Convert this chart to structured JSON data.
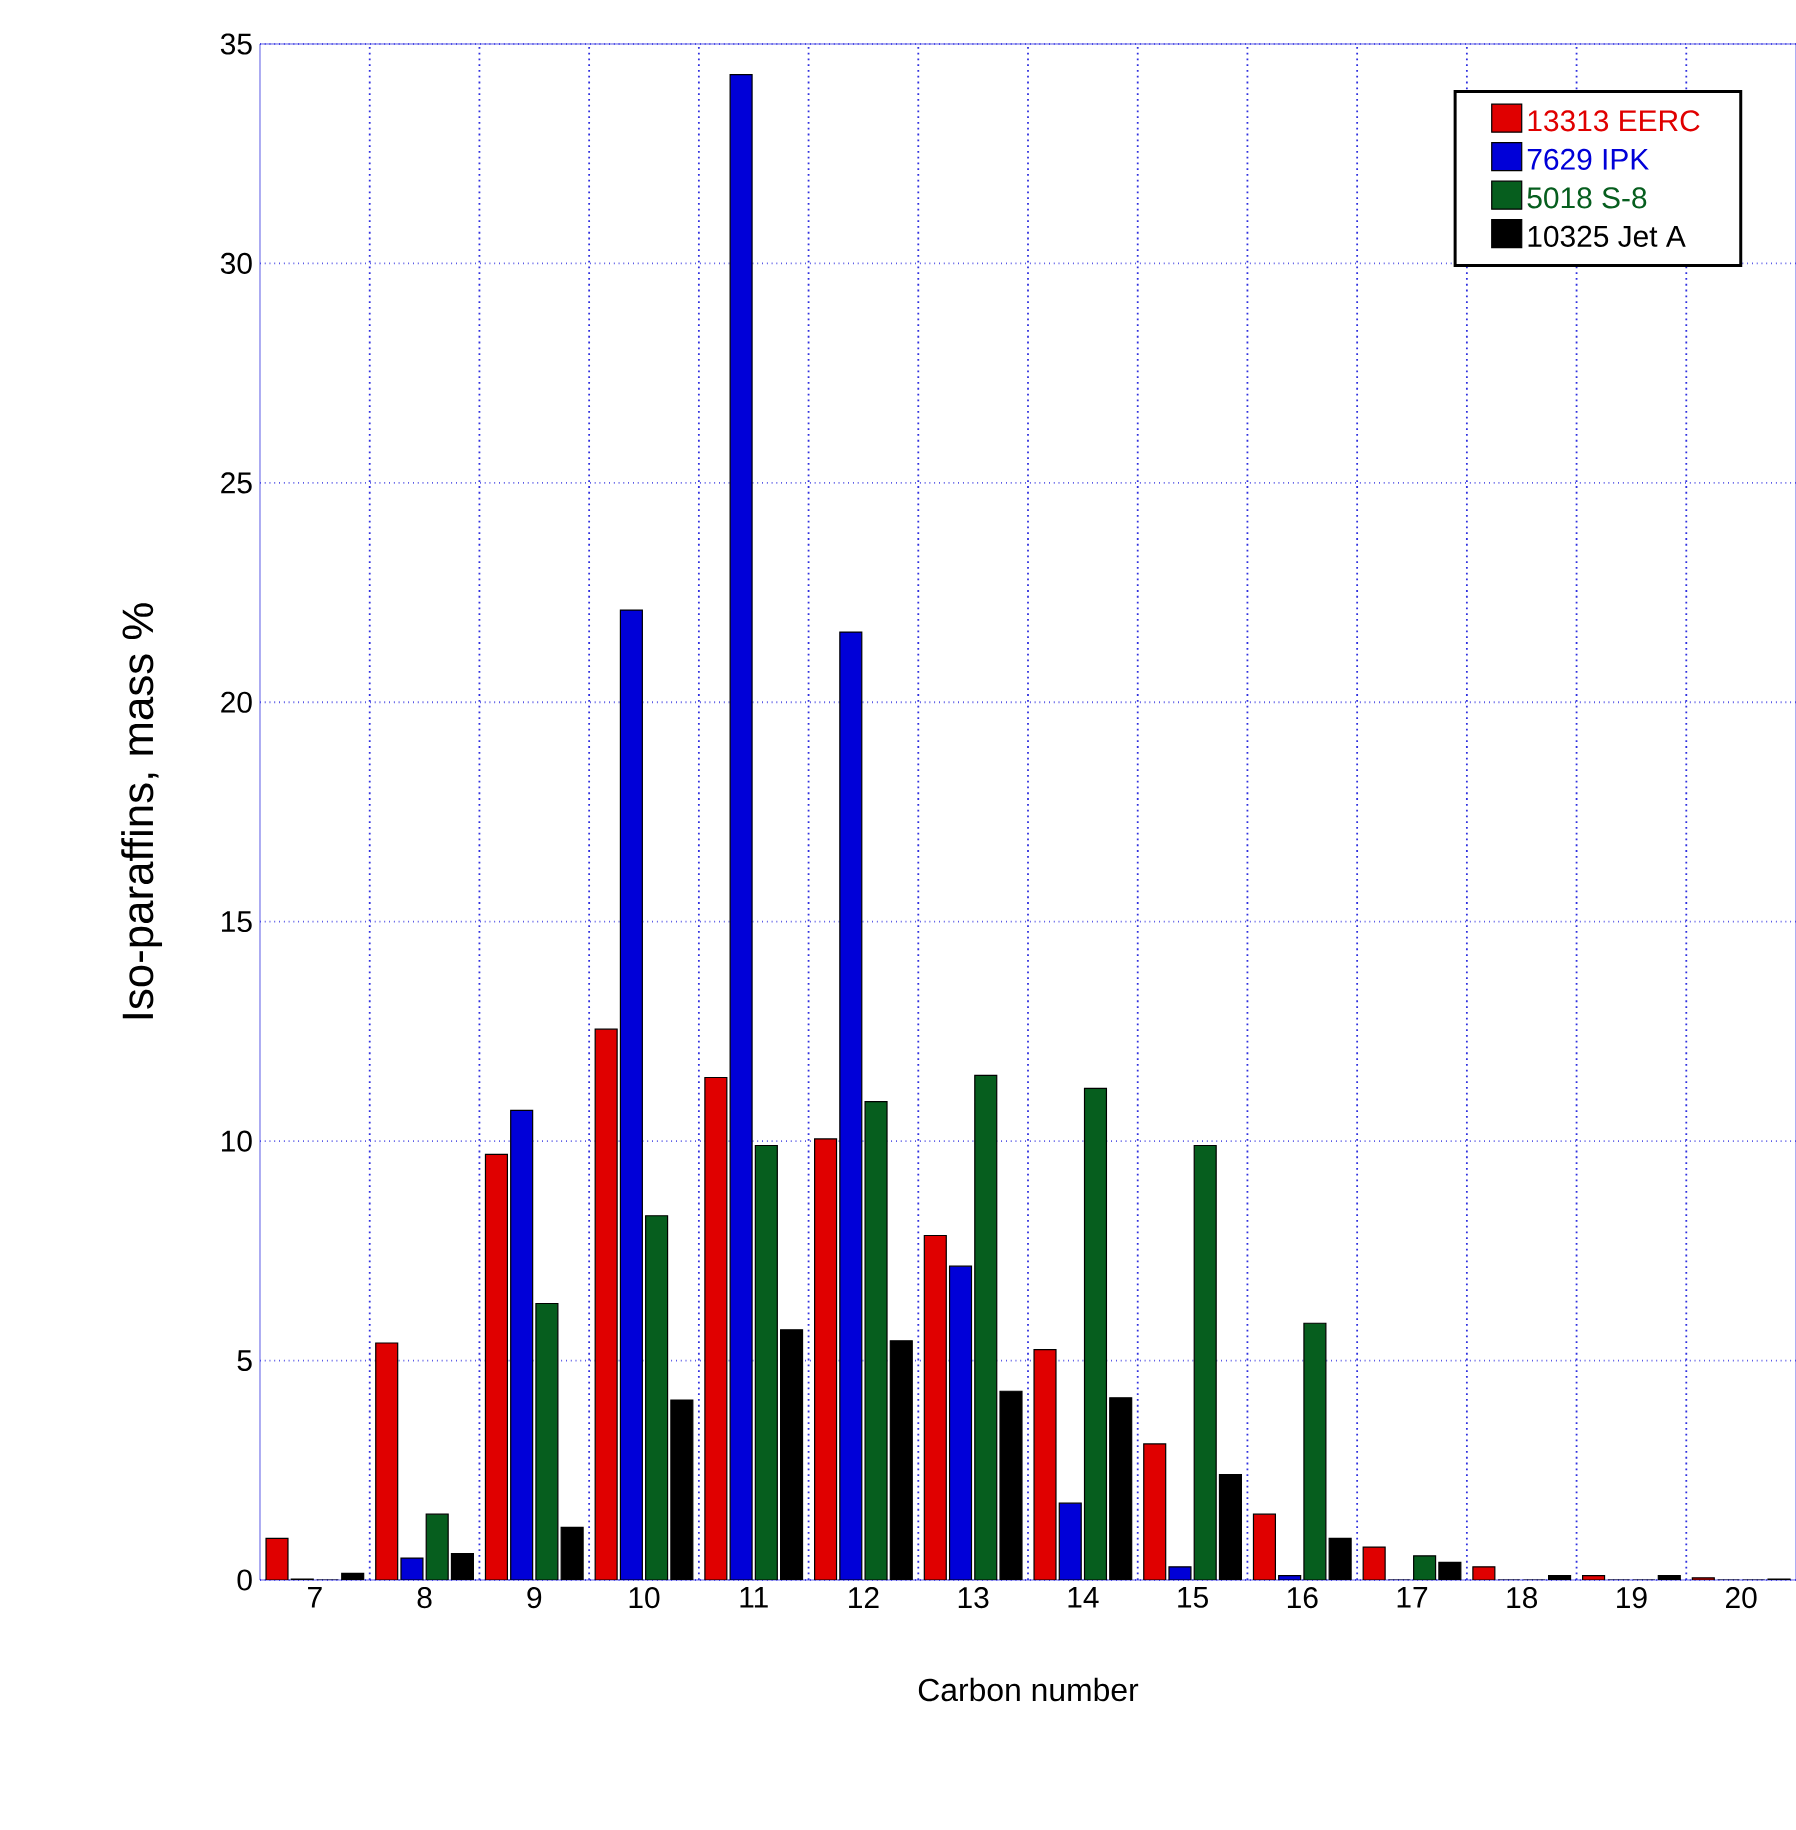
{
  "chart_data": {
    "type": "bar",
    "xlabel": "Carbon number",
    "ylabel": "Iso-paraffins, mass %",
    "categories": [
      "7",
      "8",
      "9",
      "10",
      "11",
      "12",
      "13",
      "14",
      "15",
      "16",
      "17",
      "18",
      "19",
      "20"
    ],
    "series": [
      {
        "name": "13313 EERC",
        "color": "#e00000",
        "values": [
          0.95,
          5.4,
          9.7,
          12.55,
          11.45,
          10.05,
          7.85,
          5.25,
          3.1,
          1.5,
          0.75,
          0.3,
          0.1,
          0.05
        ]
      },
      {
        "name": "7629 IPK",
        "color": "#0000d8",
        "values": [
          0.02,
          0.5,
          10.7,
          22.1,
          34.3,
          21.6,
          7.15,
          1.75,
          0.3,
          0.1,
          0,
          0,
          0,
          0
        ]
      },
      {
        "name": "5018 S-8",
        "color": "#065e1e",
        "values": [
          0,
          1.5,
          6.3,
          8.3,
          9.9,
          10.9,
          11.5,
          11.2,
          9.9,
          5.85,
          0.55,
          0,
          0,
          0
        ]
      },
      {
        "name": "10325 Jet A",
        "color": "#000000",
        "values": [
          0.15,
          0.6,
          1.2,
          4.1,
          5.7,
          5.45,
          4.3,
          4.15,
          2.4,
          0.95,
          0.4,
          0.1,
          0.1,
          0.02
        ]
      }
    ],
    "ylim": [
      0,
      35
    ],
    "yticks": [
      0,
      5,
      10,
      15,
      20,
      25,
      30,
      35
    ],
    "grid": true,
    "legend": "top right"
  }
}
